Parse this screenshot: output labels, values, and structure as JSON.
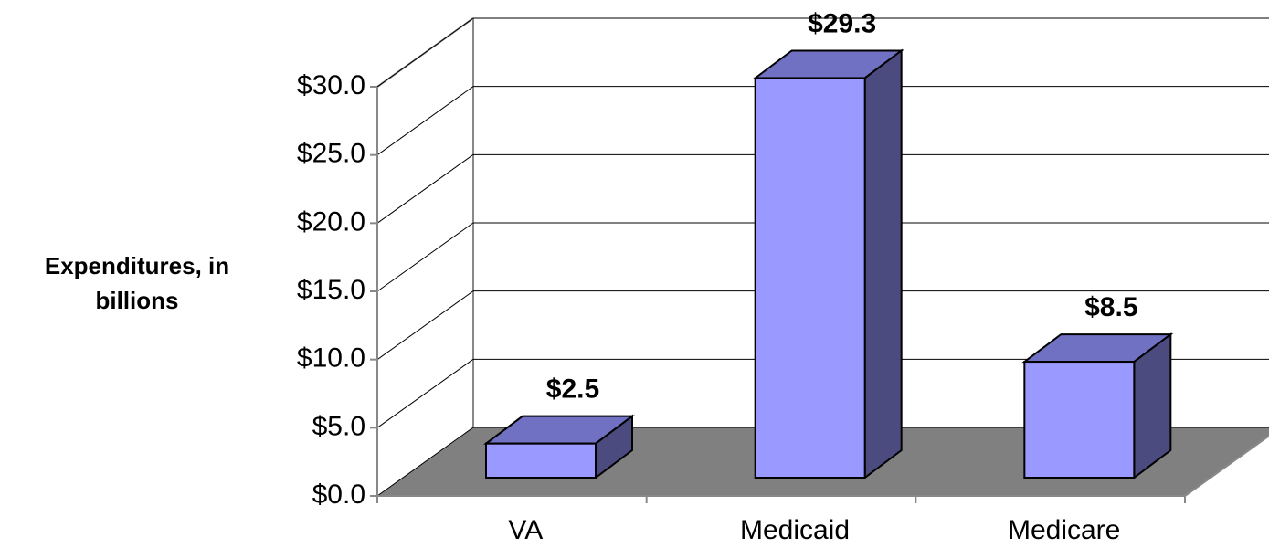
{
  "chart_data": {
    "type": "bar3d",
    "y_label": "Expenditures, in billions",
    "categories": [
      "VA",
      "Medicaid",
      "Medicare"
    ],
    "values": [
      2.5,
      29.3,
      8.5
    ],
    "value_labels": [
      "$2.5",
      "$29.3",
      "$8.5"
    ],
    "color": "#9999ff",
    "ylim": [
      0,
      30
    ],
    "yticks": [
      {
        "value": 0,
        "label": "$0.0"
      },
      {
        "value": 5,
        "label": "$5.0"
      },
      {
        "value": 10,
        "label": "$10.0"
      },
      {
        "value": 15,
        "label": "$15.0"
      },
      {
        "value": 20,
        "label": "$20.0"
      },
      {
        "value": 25,
        "label": "$25.0"
      },
      {
        "value": 30,
        "label": "$30.0"
      }
    ],
    "grid": true
  }
}
